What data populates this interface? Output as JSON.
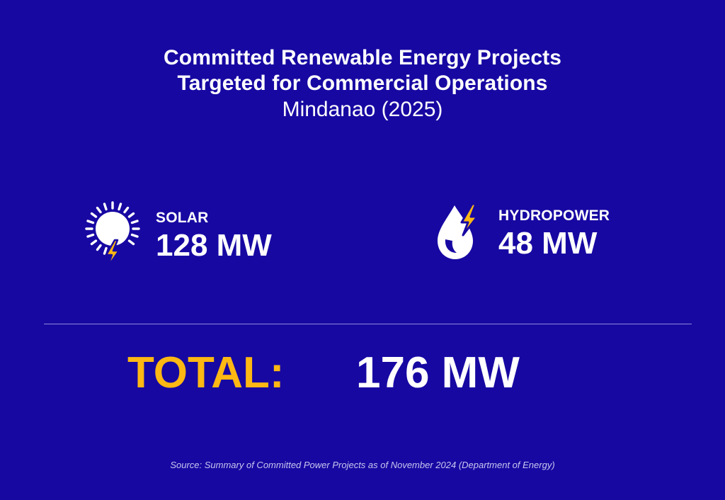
{
  "header": {
    "title_line1": "Committed Renewable Energy Projects",
    "title_line2": "Targeted for Commercial Operations",
    "subtitle": "Mindanao (2025)"
  },
  "stats": {
    "solar": {
      "icon": "sun-bolt-icon",
      "label": "SOLAR",
      "value": "128 MW"
    },
    "hydro": {
      "icon": "water-drop-bolt-icon",
      "label": "HYDROPOWER",
      "value": "48 MW"
    }
  },
  "total": {
    "label": "TOTAL:",
    "value": "176 MW"
  },
  "source": "Source: Summary of Committed Power Projects as of November 2024 (Department of Energy)",
  "colors": {
    "background": "#1708A2",
    "accent": "#FDB813",
    "text": "#FFFFFF"
  }
}
